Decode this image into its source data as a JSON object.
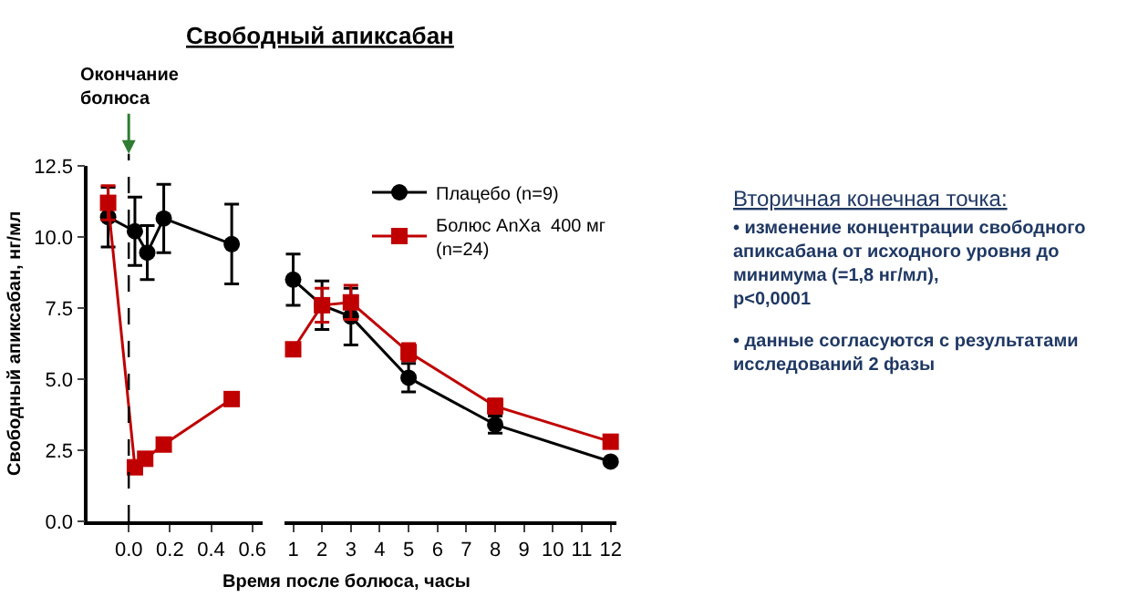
{
  "chart_data": [
    {
      "type": "line",
      "title": "Свободный апиксабан",
      "xlabel": "Время после болюса, часы",
      "ylabel": "Свободный апиксабан, нг/мл",
      "xlim": [
        -0.2,
        0.65
      ],
      "xticks": [
        {
          "value": 0,
          "label": "0.0"
        },
        0.2,
        0.4,
        0.6
      ],
      "ylim": [
        0,
        12.5
      ],
      "yticks": [
        {
          "value": 0,
          "label": "0.0"
        },
        2.5,
        {
          "value": 5,
          "label": "5.0"
        },
        7.5,
        {
          "value": 10,
          "label": "10.0"
        },
        12.5
      ],
      "ref_lines": [
        {
          "axis": "x",
          "value": 0,
          "label": "Окончание\nболюса",
          "color": "#000000",
          "line_style": "dashed"
        }
      ],
      "annotations": [
        "Вторичная конечная точка:",
        "• изменение концентрации свободного\nапиксабана от исходного уровня до\nминимума (=1,8 нг/мл),\np<0,0001",
        "• данные согласуются с результатами\nисследований 2 фазы"
      ],
      "legend": false,
      "series": [
        {
          "color": "#000000",
          "marker": "circle",
          "x": [
            -0.1,
            0.03,
            0.09,
            0.17,
            0.5
          ],
          "values": [
            10.7,
            10.2,
            9.45,
            10.65,
            9.75
          ],
          "errors": [
            1.05,
            1.2,
            0.95,
            1.2,
            1.4
          ]
        },
        {
          "color": "#c00000",
          "marker": "square",
          "x": [
            -0.1,
            0.03,
            0.08,
            0.17,
            0.5
          ],
          "values": [
            11.2,
            1.9,
            2.2,
            2.7,
            4.3
          ],
          "errors": [
            0.6,
            null,
            null,
            null,
            null
          ]
        }
      ]
    },
    {
      "type": "line",
      "xlim": [
        0.7,
        12.2
      ],
      "xticks": [
        1,
        2,
        3,
        4,
        5,
        6,
        7,
        8,
        9,
        10,
        11,
        12
      ],
      "ylim": [
        0,
        12.5
      ],
      "tick_labels": "x",
      "legend": "top right",
      "series": [
        {
          "name": "Плацебо (n=9)",
          "color": "#000000",
          "marker": "circle",
          "x": [
            1,
            2,
            3,
            5,
            8,
            12
          ],
          "values": [
            8.5,
            7.6,
            7.2,
            5.05,
            3.4,
            2.1
          ],
          "errors": [
            0.9,
            0.85,
            1.0,
            0.5,
            0.3,
            null
          ]
        },
        {
          "name": "Болюс AnXa  400 мг\n(n=24)",
          "color": "#c00000",
          "marker": "square",
          "x": [
            1,
            2,
            3,
            5,
            8,
            12
          ],
          "values": [
            6.05,
            7.6,
            7.7,
            5.95,
            4.05,
            2.8
          ],
          "errors": [
            null,
            0.6,
            0.6,
            0.3,
            0.25,
            null
          ]
        }
      ]
    }
  ]
}
